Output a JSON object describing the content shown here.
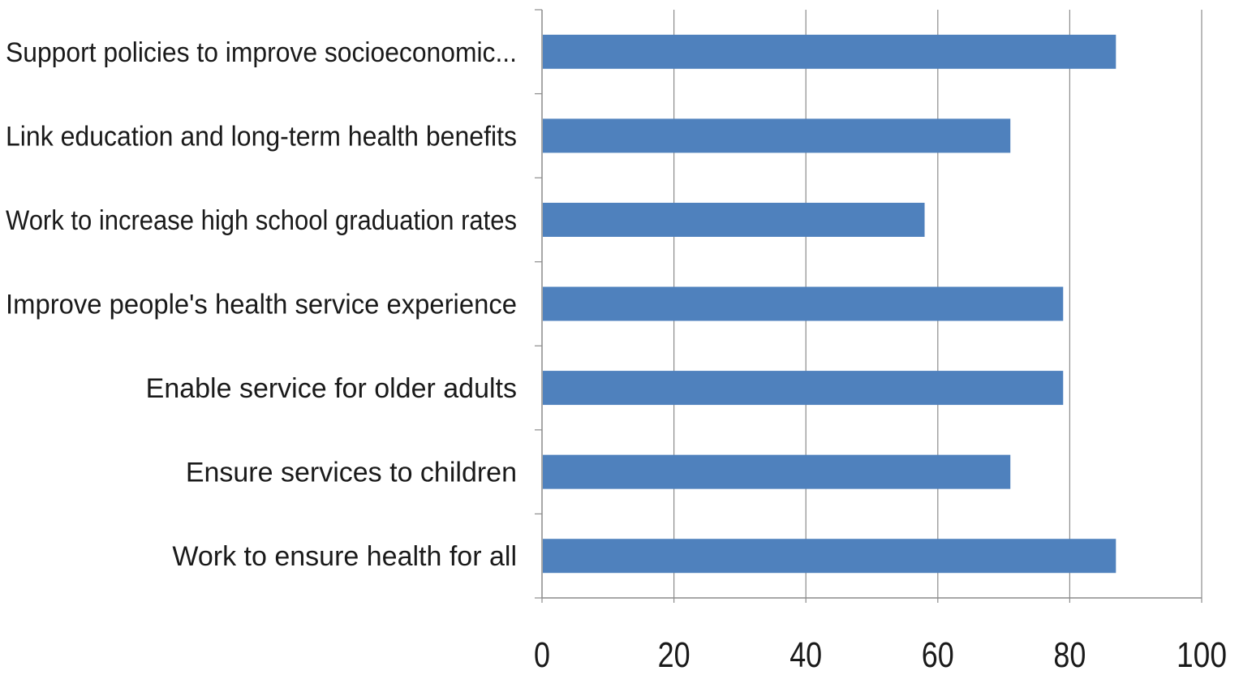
{
  "chart_data": {
    "type": "bar",
    "orientation": "horizontal",
    "title": "",
    "xlabel": "",
    "ylabel": "",
    "categories": [
      "Support policies to improve socioeconomic...",
      "Link education and long-term health benefits",
      "Work to increase high school graduation rates",
      "Improve people's health service experience",
      "Enable service for older adults",
      "Ensure services to children",
      "Work to ensure health for all"
    ],
    "values": [
      87,
      71,
      58,
      79,
      79,
      71,
      87
    ],
    "xlim": [
      0,
      100
    ],
    "x_ticks": [
      "0",
      "20",
      "40",
      "60",
      "80",
      "100"
    ],
    "grid": "vertical",
    "bar_color": "#4f81bd",
    "grid_color": "#8c8c8c",
    "axis_color": "#8c8c8c",
    "text_color": "#1a1a1a"
  }
}
